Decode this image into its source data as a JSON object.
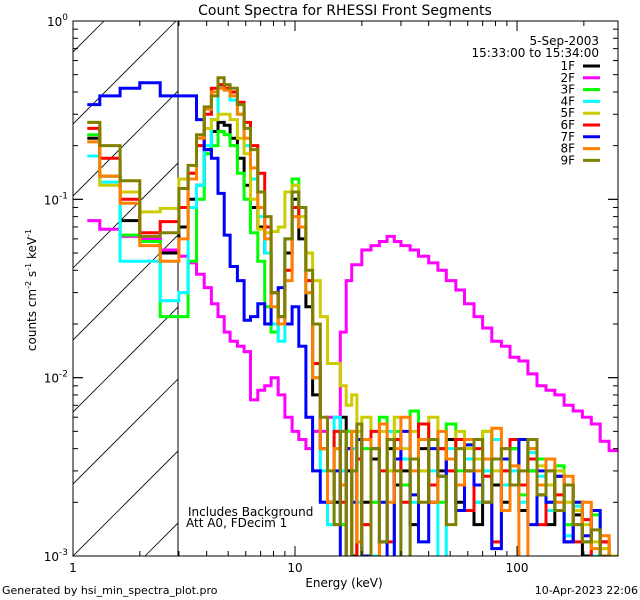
{
  "chart_data": {
    "type": "line",
    "title": "Count Spectra for RHESSI Front Segments",
    "xlabel": "Energy (keV)",
    "ylabel": "counts cm-2 s-1 keV-1",
    "ylabel_parts": {
      "a": "counts cm",
      "b": "-2",
      "c": " s",
      "d": "-1",
      "e": " keV",
      "f": "-1"
    },
    "xscale": "log",
    "yscale": "log",
    "xlim": [
      1,
      285
    ],
    "ylim": [
      0.001,
      1
    ],
    "x_ticks": [
      {
        "value": 1,
        "label": "1"
      },
      {
        "value": 10,
        "label": "10"
      },
      {
        "value": 100,
        "label": "100"
      }
    ],
    "y_ticks": [
      {
        "value": 1,
        "base": "10",
        "exp": "0"
      },
      {
        "value": 0.1,
        "base": "10",
        "exp": "-1"
      },
      {
        "value": 0.01,
        "base": "10",
        "exp": "-2"
      },
      {
        "value": 0.001,
        "base": "10",
        "exp": "-3"
      }
    ],
    "date": "5-Sep-2003",
    "time_range": "15:33:00 to 15:34:00",
    "annotations": [
      "Includes Background",
      "Att A0, FDecim 1"
    ],
    "attenuator_shaded_below_keV": 3.0,
    "legend_position": "top-right",
    "bin_edges_keV": [
      1.16,
      1.32,
      1.63,
      2.0,
      2.47,
      3.0,
      3.3,
      3.6,
      3.9,
      4.2,
      4.5,
      4.8,
      5.1,
      5.5,
      5.9,
      6.3,
      6.8,
      7.3,
      7.8,
      8.4,
      9.0,
      9.7,
      10.4,
      11.2,
      12.0,
      13.0,
      14.0,
      15.0,
      16,
      17,
      18,
      19,
      20,
      22,
      24,
      26,
      28,
      30,
      33,
      36,
      40,
      44,
      48,
      53,
      58,
      64,
      70,
      77,
      85,
      93,
      102,
      112,
      123,
      135,
      148,
      163,
      179,
      197,
      216,
      237,
      260,
      285
    ],
    "series": [
      {
        "name": "1F",
        "color": "#000000",
        "values": [
          0.22,
          0.135,
          0.076,
          0.06,
          0.05,
          0.07,
          0.1,
          0.12,
          0.19,
          0.24,
          0.27,
          0.26,
          0.22,
          0.17,
          0.12,
          0.09,
          0.07,
          0.05,
          0.03,
          0.022,
          0.05,
          0.1,
          0.06,
          0.025,
          0.008,
          0.004,
          0.002,
          0.002,
          0.006,
          0.003,
          0.001,
          0.0045,
          0.002,
          0.0035,
          0.0012,
          0.004,
          0.0025,
          0.003,
          0.0015,
          0.004,
          0.002,
          0.003,
          0.0045,
          0.002,
          0.003,
          0.0015,
          0.0035,
          0.0025,
          0.002,
          0.004,
          0.0018,
          0.003,
          0.0022,
          0.0015,
          0.0028,
          0.0012,
          0.0017,
          0.001,
          0.0008,
          0.0012,
          0.0008
        ]
      },
      {
        "name": "2F",
        "color": "#ff00ff",
        "values": [
          0.076,
          0.068,
          0.062,
          0.06,
          0.052,
          0.048,
          0.044,
          0.038,
          0.032,
          0.026,
          0.022,
          0.018,
          0.016,
          0.015,
          0.014,
          0.0075,
          0.0085,
          0.009,
          0.01,
          0.008,
          0.006,
          0.005,
          0.0045,
          0.004,
          0.005,
          0.005,
          0.006,
          0.006,
          0.018,
          0.035,
          0.043,
          0.043,
          0.052,
          0.055,
          0.058,
          0.062,
          0.058,
          0.055,
          0.052,
          0.048,
          0.044,
          0.04,
          0.035,
          0.031,
          0.026,
          0.022,
          0.019,
          0.016,
          0.015,
          0.013,
          0.0124,
          0.0105,
          0.009,
          0.0085,
          0.008,
          0.007,
          0.0065,
          0.006,
          0.0055,
          0.0044,
          0.0039
        ]
      },
      {
        "name": "3F",
        "color": "#00ff00",
        "values": [
          0.23,
          0.135,
          0.063,
          0.058,
          0.022,
          0.022,
          0.045,
          0.1,
          0.18,
          0.2,
          0.24,
          0.23,
          0.2,
          0.14,
          0.1,
          0.065,
          0.045,
          0.025,
          0.018,
          0.02,
          0.06,
          0.13,
          0.07,
          0.03,
          0.01,
          0.004,
          0.002,
          0.004,
          0.0015,
          0.005,
          0.003,
          0.0008,
          0.004,
          0.002,
          0.006,
          0.003,
          0.005,
          0.0025,
          0.0065,
          0.003,
          0.0045,
          0.002,
          0.0055,
          0.003,
          0.0042,
          0.002,
          0.005,
          0.0035,
          0.003,
          0.004,
          0.0022,
          0.003,
          0.0035,
          0.002,
          0.0032,
          0.0015,
          0.002,
          0.0012,
          0.0017,
          0.0011,
          0.0009
        ]
      },
      {
        "name": "4F",
        "color": "#00ffff",
        "values": [
          0.175,
          0.125,
          0.045,
          0.045,
          0.027,
          0.03,
          0.09,
          0.12,
          0.2,
          0.28,
          0.43,
          0.41,
          0.36,
          0.3,
          0.2,
          0.13,
          0.08,
          0.05,
          0.02,
          0.016,
          0.06,
          0.12,
          0.07,
          0.03,
          0.01,
          0.003,
          0.0015,
          0.006,
          0.003,
          0.0008,
          0.004,
          0.002,
          0.0045,
          0.001,
          0.003,
          0.005,
          0.0008,
          0.0035,
          0.002,
          0.0045,
          0.003,
          0.0009,
          0.004,
          0.0025,
          0.0035,
          0.002,
          0.003,
          0.0045,
          0.0025,
          0.003,
          0.002,
          0.0038,
          0.0028,
          0.0018,
          0.003,
          0.0013,
          0.0019,
          0.0012,
          0.001,
          0.0009,
          0.0008
        ]
      },
      {
        "name": "5F",
        "color": "#cccc00",
        "values": [
          0.27,
          0.12,
          0.11,
          0.085,
          0.089,
          0.13,
          0.14,
          0.2,
          0.25,
          0.28,
          0.3,
          0.3,
          0.28,
          0.22,
          0.18,
          0.1,
          0.068,
          0.065,
          0.066,
          0.07,
          0.11,
          0.12,
          0.08,
          0.05,
          0.035,
          0.022,
          0.012,
          0.012,
          0.009,
          0.007,
          0.008,
          0.005,
          0.006,
          0.004,
          0.005,
          0.003,
          0.006,
          0.004,
          0.005,
          0.003,
          0.006,
          0.004,
          0.003,
          0.005,
          0.004,
          0.0035,
          0.005,
          0.003,
          0.004,
          0.0045,
          0.003,
          0.004,
          0.0032,
          0.0025,
          0.003,
          0.002,
          0.0018,
          0.0015,
          0.0012,
          0.0011,
          0.001
        ]
      },
      {
        "name": "6F",
        "color": "#ff0000",
        "values": [
          0.25,
          0.17,
          0.1,
          0.065,
          0.075,
          0.09,
          0.14,
          0.2,
          0.3,
          0.42,
          0.44,
          0.42,
          0.4,
          0.35,
          0.27,
          0.2,
          0.14,
          0.07,
          0.03,
          0.02,
          0.04,
          0.09,
          0.07,
          0.035,
          0.012,
          0.004,
          0.002,
          0.005,
          0.002,
          0.004,
          0.0008,
          0.0035,
          0.0015,
          0.005,
          0.003,
          0.0012,
          0.0045,
          0.002,
          0.0035,
          0.0055,
          0.0025,
          0.004,
          0.003,
          0.0045,
          0.0018,
          0.004,
          0.0028,
          0.0012,
          0.003,
          0.0045,
          0.0025,
          0.0035,
          0.0015,
          0.003,
          0.0022,
          0.0025,
          0.0012,
          0.0016,
          0.0009,
          0.0012,
          0.0008
        ]
      },
      {
        "name": "7F",
        "color": "#0000ff",
        "values": [
          0.34,
          0.38,
          0.42,
          0.45,
          0.38,
          0.38,
          0.38,
          0.28,
          0.19,
          0.17,
          0.108,
          0.063,
          0.042,
          0.035,
          0.021,
          0.022,
          0.026,
          0.02,
          0.03,
          0.032,
          0.02,
          0.025,
          0.015,
          0.006,
          0.003,
          0.002,
          0.002,
          0.003,
          0.0008,
          0.004,
          0.002,
          0.0045,
          0.001,
          0.004,
          0.002,
          0.0008,
          0.0035,
          0.005,
          0.0022,
          0.0012,
          0.004,
          0.0028,
          0.0035,
          0.0018,
          0.0042,
          0.0025,
          0.002,
          0.0011,
          0.0035,
          0.0025,
          0.0045,
          0.0015,
          0.003,
          0.002,
          0.0028,
          0.0012,
          0.002,
          0.0013,
          0.0018,
          0.0009,
          0.0008
        ]
      },
      {
        "name": "8F",
        "color": "#ff8000",
        "values": [
          0.21,
          0.135,
          0.095,
          0.055,
          0.045,
          0.06,
          0.13,
          0.22,
          0.32,
          0.4,
          0.42,
          0.41,
          0.38,
          0.3,
          0.22,
          0.15,
          0.09,
          0.06,
          0.025,
          0.02,
          0.035,
          0.08,
          0.07,
          0.03,
          0.01,
          0.004,
          0.002,
          0.004,
          0.0025,
          0.0008,
          0.005,
          0.0012,
          0.0045,
          0.0009,
          0.0055,
          0.002,
          0.004,
          0.006,
          0.003,
          0.0045,
          0.002,
          0.005,
          0.0035,
          0.0025,
          0.0045,
          0.003,
          0.0035,
          0.0052,
          0.0018,
          0.0032,
          0.0008,
          0.004,
          0.0025,
          0.0035,
          0.002,
          0.0028,
          0.0015,
          0.002,
          0.0011,
          0.0013,
          0.0009
        ]
      },
      {
        "name": "9F",
        "color": "#808000",
        "values": [
          0.27,
          0.2,
          0.127,
          0.062,
          0.065,
          0.115,
          0.155,
          0.23,
          0.33,
          0.38,
          0.48,
          0.44,
          0.42,
          0.34,
          0.25,
          0.19,
          0.11,
          0.08,
          0.03,
          0.022,
          0.06,
          0.11,
          0.09,
          0.04,
          0.02,
          0.006,
          0.003,
          0.0015,
          0.005,
          0.0009,
          0.003,
          0.0055,
          0.0008,
          0.004,
          0.0012,
          0.0045,
          0.003,
          0.0008,
          0.0035,
          0.002,
          0.0045,
          0.0028,
          0.0015,
          0.004,
          0.003,
          0.0045,
          0.002,
          0.0035,
          0.004,
          0.0025,
          0.003,
          0.0045,
          0.0022,
          0.003,
          0.0018,
          0.0025,
          0.0015,
          0.0012,
          0.0014,
          0.001,
          0.0008
        ]
      }
    ]
  },
  "footer": {
    "generated_by": "Generated by hsi_min_spectra_plot.pro",
    "timestamp": "10-Apr-2023 22:06"
  }
}
